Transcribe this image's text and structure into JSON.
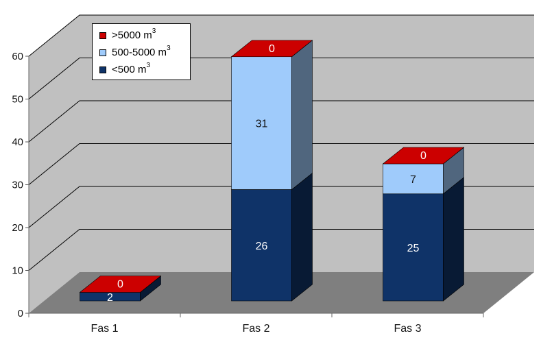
{
  "colors": {
    "wall": "#c0c0c0",
    "floor": "#7f7f7f",
    "grid": "#000000",
    "small": "#0f3368",
    "medium": "#9fcbfb",
    "large": "#cc0000"
  },
  "legend": {
    "items": [
      {
        "text": ">5000 m",
        "sup": "3",
        "color": "#cc0000"
      },
      {
        "text": "500-5000 m",
        "sup": "3",
        "color": "#9fcbfb"
      },
      {
        "text": "<500 m",
        "sup": "3",
        "color": "#0f3368"
      }
    ]
  },
  "chart_data": {
    "type": "bar",
    "stacked": true,
    "three_d": true,
    "categories": [
      "Fas 1",
      "Fas 2",
      "Fas 3"
    ],
    "series": [
      {
        "name": "<500 m3",
        "values": [
          2,
          26,
          25
        ],
        "color": "#0f3368"
      },
      {
        "name": "500-5000 m3",
        "values": [
          0,
          31,
          7
        ],
        "color": "#9fcbfb"
      },
      {
        "name": ">5000 m3",
        "values": [
          0,
          0,
          0
        ],
        "color": "#cc0000"
      }
    ],
    "ylim": [
      0,
      60
    ],
    "yticks": [
      0,
      10,
      20,
      30,
      40,
      50,
      60
    ],
    "grid": true,
    "legend_position": "top-left",
    "title": "",
    "xlabel": "",
    "ylabel": ""
  }
}
